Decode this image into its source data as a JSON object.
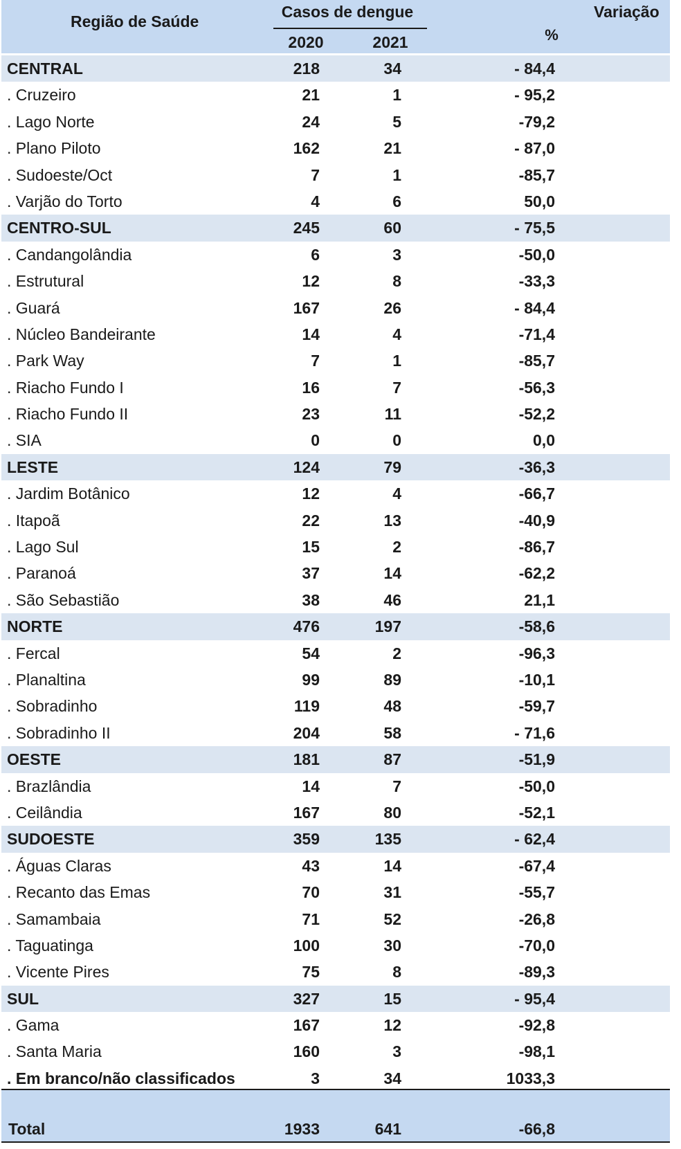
{
  "header": {
    "region_label": "Região de Saúde",
    "cases_label": "Casos de dengue",
    "year1": "2020",
    "year2": "2021",
    "variation_label": "Variação",
    "percent_label": "%"
  },
  "rows": [
    {
      "name": "CENTRAL",
      "v2020": "218",
      "v2021": "34",
      "var": "- 84,4",
      "type": "region"
    },
    {
      "name": ". Cruzeiro",
      "v2020": "21",
      "v2021": "1",
      "var": "- 95,2",
      "type": "sub"
    },
    {
      "name": ". Lago Norte",
      "v2020": "24",
      "v2021": "5",
      "var": "-79,2",
      "type": "sub"
    },
    {
      "name": ". Plano Piloto",
      "v2020": "162",
      "v2021": "21",
      "var": "- 87,0",
      "type": "sub"
    },
    {
      "name": ". Sudoeste/Oct",
      "v2020": "7",
      "v2021": "1",
      "var": "-85,7",
      "type": "sub"
    },
    {
      "name": ". Varjão do Torto",
      "v2020": "4",
      "v2021": "6",
      "var": "50,0",
      "type": "sub"
    },
    {
      "name": "CENTRO-SUL",
      "v2020": "245",
      "v2021": "60",
      "var": "- 75,5",
      "type": "region"
    },
    {
      "name": ". Candangolândia",
      "v2020": "6",
      "v2021": "3",
      "var": "-50,0",
      "type": "sub"
    },
    {
      "name": ". Estrutural",
      "v2020": "12",
      "v2021": "8",
      "var": "-33,3",
      "type": "sub"
    },
    {
      "name": ". Guará",
      "v2020": "167",
      "v2021": "26",
      "var": "- 84,4",
      "type": "sub"
    },
    {
      "name": ". Núcleo Bandeirante",
      "v2020": "14",
      "v2021": "4",
      "var": "-71,4",
      "type": "sub"
    },
    {
      "name": ". Park Way",
      "v2020": "7",
      "v2021": "1",
      "var": "-85,7",
      "type": "sub"
    },
    {
      "name": ". Riacho Fundo I",
      "v2020": "16",
      "v2021": "7",
      "var": "-56,3",
      "type": "sub"
    },
    {
      "name": ". Riacho Fundo II",
      "v2020": "23",
      "v2021": "11",
      "var": "-52,2",
      "type": "sub"
    },
    {
      "name": ". SIA",
      "v2020": "0",
      "v2021": "0",
      "var": "0,0",
      "type": "sub"
    },
    {
      "name": "LESTE",
      "v2020": "124",
      "v2021": "79",
      "var": "-36,3",
      "type": "region"
    },
    {
      "name": ". Jardim Botânico",
      "v2020": "12",
      "v2021": "4",
      "var": "-66,7",
      "type": "sub"
    },
    {
      "name": ". Itapoã",
      "v2020": "22",
      "v2021": "13",
      "var": "-40,9",
      "type": "sub"
    },
    {
      "name": ". Lago Sul",
      "v2020": "15",
      "v2021": "2",
      "var": "-86,7",
      "type": "sub"
    },
    {
      "name": ". Paranoá",
      "v2020": "37",
      "v2021": "14",
      "var": "-62,2",
      "type": "sub"
    },
    {
      "name": ". São Sebastião",
      "v2020": "38",
      "v2021": "46",
      "var": "21,1",
      "type": "sub"
    },
    {
      "name": " NORTE",
      "v2020": "476",
      "v2021": "197",
      "var": "-58,6",
      "type": "region"
    },
    {
      "name": ". Fercal",
      "v2020": "54",
      "v2021": "2",
      "var": "-96,3",
      "type": "sub"
    },
    {
      "name": ". Planaltina",
      "v2020": "99",
      "v2021": "89",
      "var": "-10,1",
      "type": "sub"
    },
    {
      "name": ". Sobradinho",
      "v2020": "119",
      "v2021": "48",
      "var": "-59,7",
      "type": "sub"
    },
    {
      "name": ". Sobradinho II",
      "v2020": "204",
      "v2021": "58",
      "var": "- 71,6",
      "type": "sub"
    },
    {
      "name": "OESTE",
      "v2020": "181",
      "v2021": "87",
      "var": "-51,9",
      "type": "region"
    },
    {
      "name": ". Brazlândia",
      "v2020": "14",
      "v2021": "7",
      "var": "-50,0",
      "type": "sub"
    },
    {
      "name": ". Ceilândia",
      "v2020": "167",
      "v2021": "80",
      "var": "-52,1",
      "type": "sub"
    },
    {
      "name": "SUDOESTE",
      "v2020": "359",
      "v2021": "135",
      "var": "- 62,4",
      "type": "region"
    },
    {
      "name": ". Águas Claras",
      "v2020": "43",
      "v2021": "14",
      "var": "-67,4",
      "type": "sub"
    },
    {
      "name": ". Recanto das Emas",
      "v2020": "70",
      "v2021": "31",
      "var": "-55,7",
      "type": "sub"
    },
    {
      "name": ". Samambaia",
      "v2020": "71",
      "v2021": "52",
      "var": "-26,8",
      "type": "sub"
    },
    {
      "name": ". Taguatinga",
      "v2020": "100",
      "v2021": "30",
      "var": "-70,0",
      "type": "sub"
    },
    {
      "name": ". Vicente Pires",
      "v2020": "75",
      "v2021": "8",
      "var": "-89,3",
      "type": "sub"
    },
    {
      "name": "SUL",
      "v2020": "327",
      "v2021": "15",
      "var": "- 95,4",
      "type": "region"
    },
    {
      "name": ". Gama",
      "v2020": "167",
      "v2021": "12",
      "var": "-92,8",
      "type": "sub"
    },
    {
      "name": ". Santa Maria",
      "v2020": "160",
      "v2021": "3",
      "var": "-98,1",
      "type": "sub"
    },
    {
      "name": ". Em branco/não classificados",
      "v2020": "3",
      "v2021": "34",
      "var": "1033,3",
      "type": "bold"
    }
  ],
  "total": {
    "name": "Total",
    "v2020": "1933",
    "v2021": "641",
    "var": "-66,8"
  }
}
